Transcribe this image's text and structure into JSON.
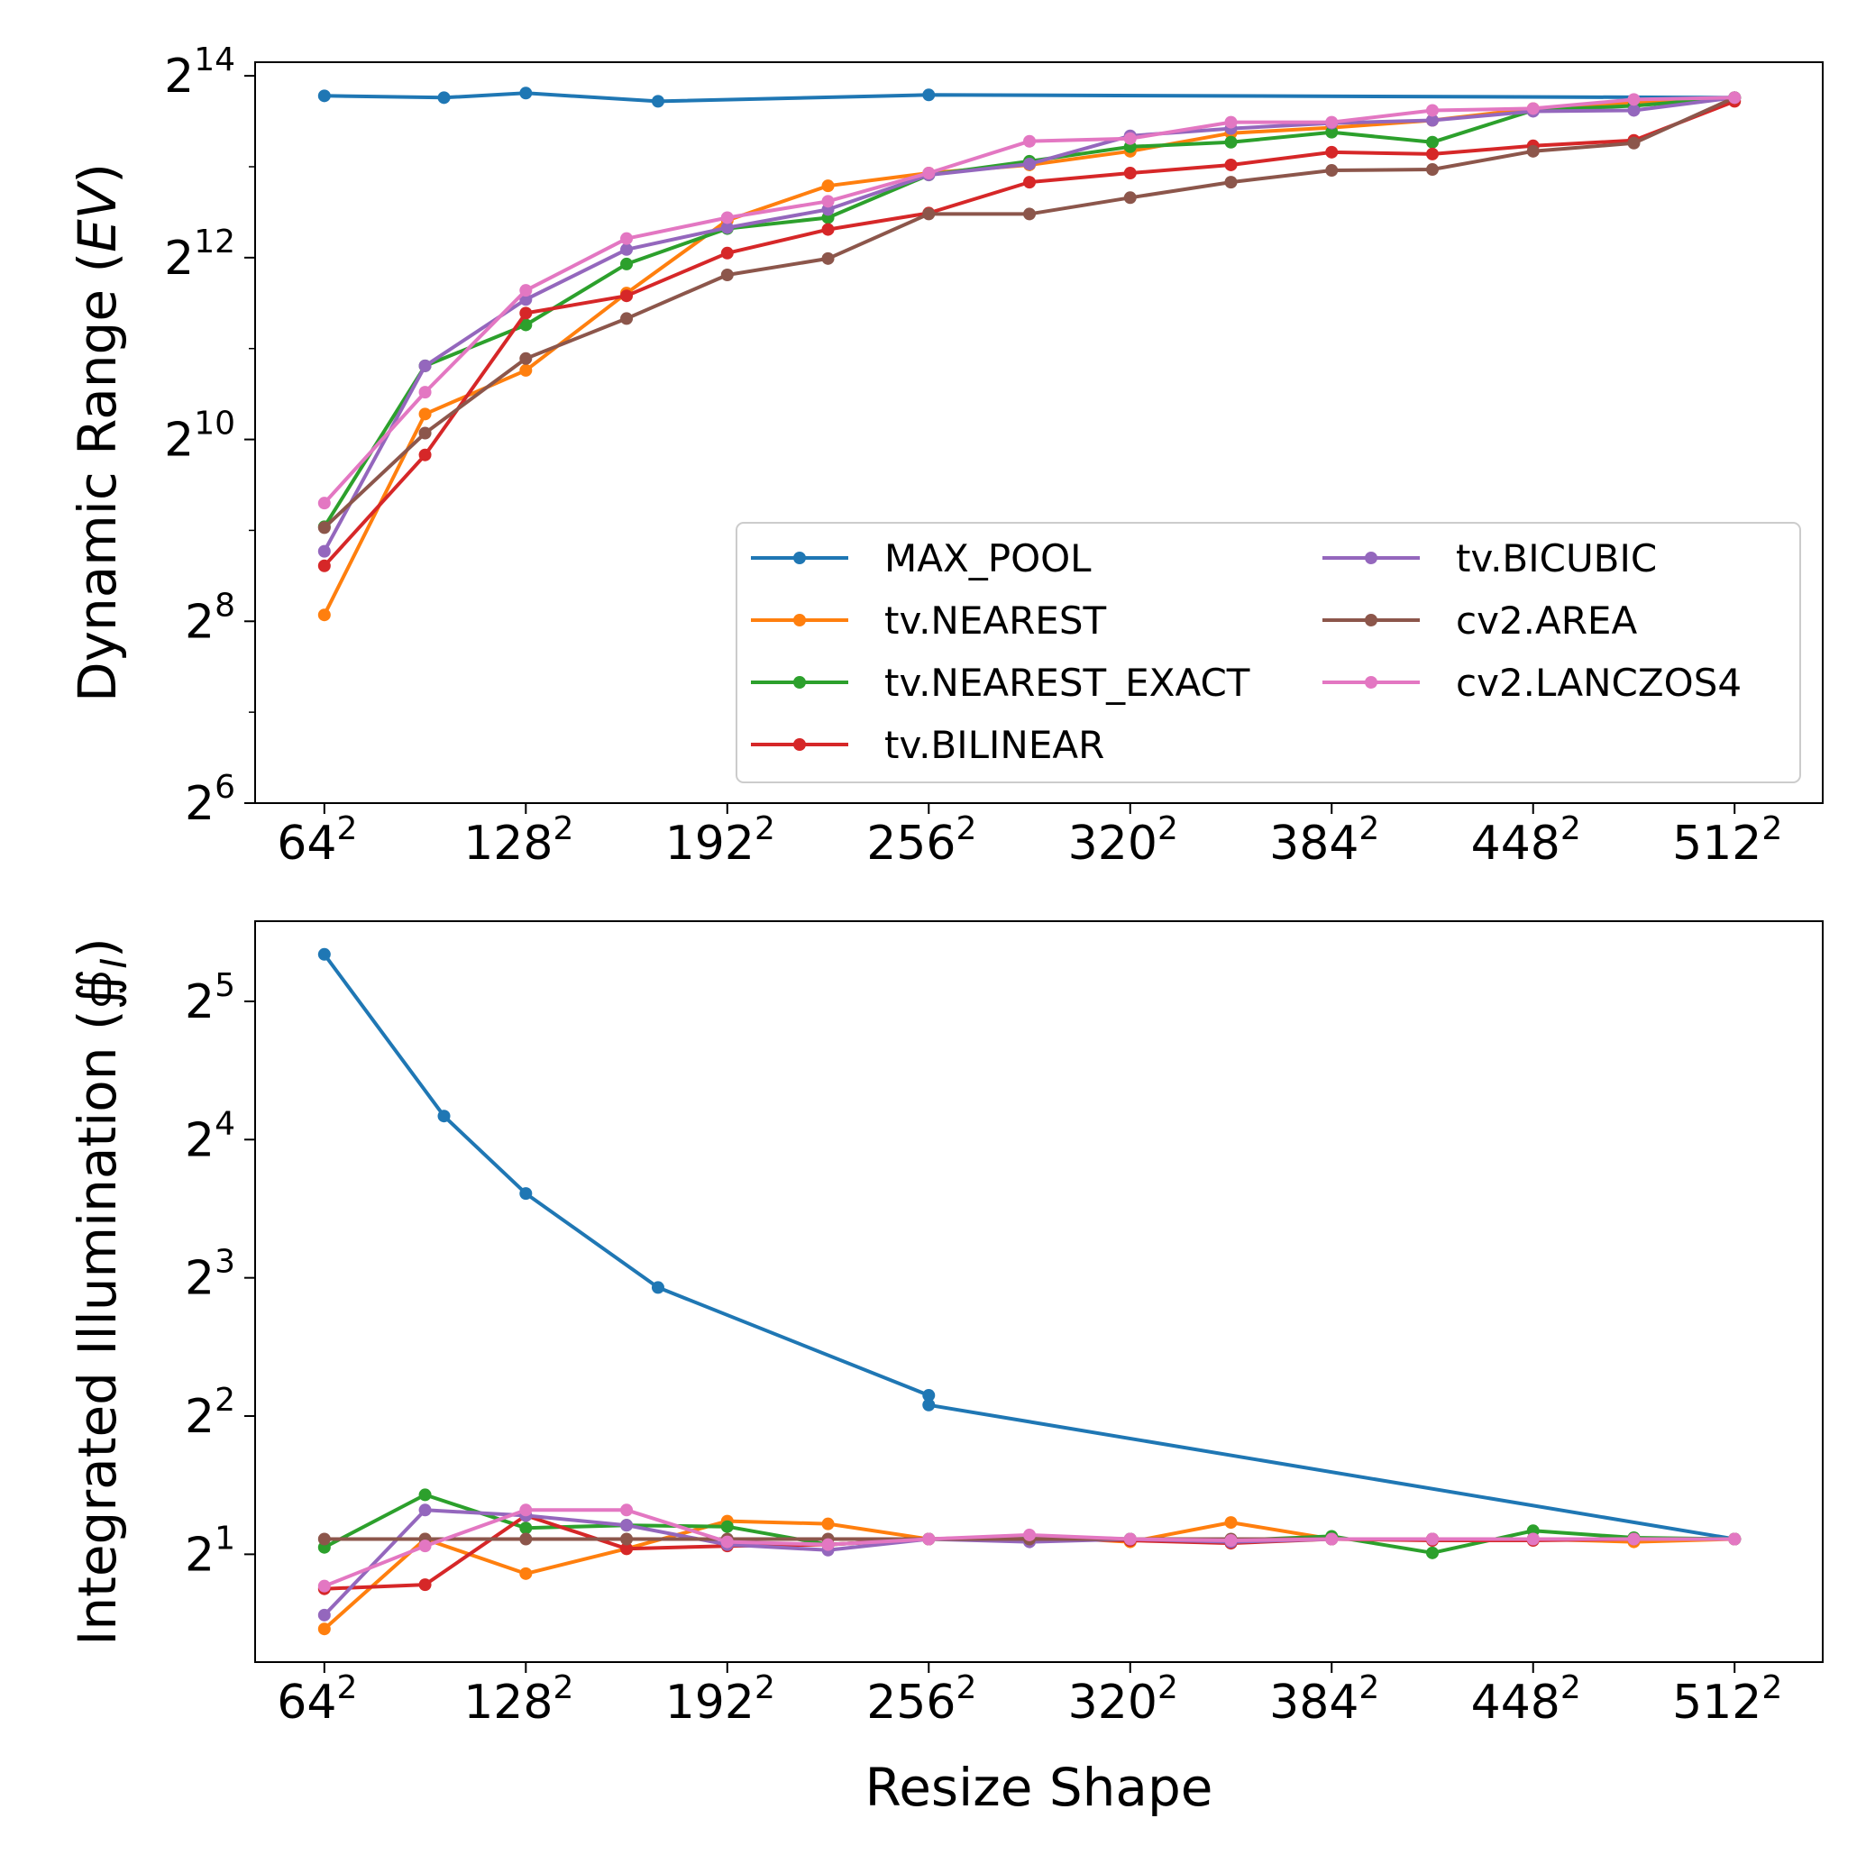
{
  "x_tick_labels": [
    "64",
    "128",
    "192",
    "256",
    "320",
    "384",
    "448",
    "512"
  ],
  "x_tick_exponent": "2",
  "series_colors": [
    "#1f77b4",
    "#ff7f0e",
    "#2ca02c",
    "#d62728",
    "#9467bd",
    "#8c564b",
    "#e377c2"
  ],
  "chart_data": [
    {
      "type": "line",
      "ylabel": "Dynamic Range",
      "ylabel_unit": "EV",
      "yscale": "log2",
      "ylim_exponent": [
        6,
        14.15
      ],
      "ytick_base": "2",
      "ytick_exponents": [
        "6",
        "8",
        "10",
        "12",
        "14"
      ],
      "xlim": [
        42,
        540
      ],
      "xtick_values": [
        64,
        128,
        192,
        256,
        320,
        384,
        448,
        512
      ],
      "legend_placement": "lower-right",
      "legend_columns": 2,
      "series": [
        {
          "name": "MAX_POOL",
          "color": "#1f77b4",
          "x": [
            64,
            102,
            128,
            170,
            256,
            512
          ],
          "y": [
            13.78,
            13.76,
            13.81,
            13.72,
            13.79,
            13.76
          ]
        },
        {
          "name": "tv.NEAREST",
          "color": "#ff7f0e",
          "x": [
            64,
            96,
            128,
            160,
            192,
            224,
            256,
            288,
            320,
            352,
            384,
            416,
            448,
            480,
            512
          ],
          "y": [
            8.07,
            10.28,
            10.76,
            11.61,
            12.41,
            12.79,
            12.93,
            13.02,
            13.17,
            13.37,
            13.43,
            13.51,
            13.64,
            13.71,
            13.76
          ]
        },
        {
          "name": "tv.NEAREST_EXACT",
          "color": "#2ca02c",
          "x": [
            64,
            96,
            128,
            160,
            192,
            224,
            256,
            288,
            320,
            352,
            384,
            416,
            448,
            480,
            512
          ],
          "y": [
            9.04,
            10.81,
            11.26,
            11.93,
            12.32,
            12.44,
            12.91,
            13.06,
            13.22,
            13.27,
            13.38,
            13.27,
            13.62,
            13.67,
            13.76
          ]
        },
        {
          "name": "tv.BILINEAR",
          "color": "#d62728",
          "x": [
            64,
            96,
            128,
            160,
            192,
            224,
            256,
            288,
            320,
            352,
            384,
            416,
            448,
            480,
            512
          ],
          "y": [
            8.61,
            9.83,
            11.39,
            11.58,
            12.05,
            12.31,
            12.49,
            12.83,
            12.93,
            13.02,
            13.16,
            13.14,
            13.23,
            13.29,
            13.72
          ]
        },
        {
          "name": "tv.BICUBIC",
          "color": "#9467bd",
          "x": [
            64,
            96,
            128,
            160,
            192,
            224,
            256,
            288,
            320,
            352,
            384,
            416,
            448,
            480,
            512
          ],
          "y": [
            8.77,
            10.81,
            11.54,
            12.09,
            12.33,
            12.53,
            12.91,
            13.03,
            13.34,
            13.42,
            13.48,
            13.51,
            13.61,
            13.62,
            13.76
          ]
        },
        {
          "name": "cv2.AREA",
          "color": "#8c564b",
          "x": [
            64,
            96,
            128,
            160,
            192,
            224,
            256,
            288,
            320,
            352,
            384,
            416,
            448,
            480,
            512
          ],
          "y": [
            9.03,
            10.07,
            10.89,
            11.33,
            11.81,
            11.99,
            12.48,
            12.48,
            12.66,
            12.83,
            12.96,
            12.97,
            13.17,
            13.26,
            13.76
          ]
        },
        {
          "name": "cv2.LANCZOS4",
          "color": "#e377c2",
          "x": [
            64,
            96,
            128,
            160,
            192,
            224,
            256,
            288,
            320,
            352,
            384,
            416,
            448,
            480,
            512
          ],
          "y": [
            9.3,
            10.52,
            11.64,
            12.21,
            12.44,
            12.62,
            12.93,
            13.28,
            13.31,
            13.49,
            13.49,
            13.62,
            13.64,
            13.74,
            13.76
          ]
        }
      ]
    },
    {
      "type": "line",
      "ylabel": "Integrated Illumination",
      "ylabel_symbol": "∯",
      "ylabel_subscript": "I",
      "xlabel": "Resize Shape",
      "yscale": "log2",
      "ylim_exponent": [
        0.22,
        5.58
      ],
      "ytick_base": "2",
      "ytick_exponents": [
        "1",
        "2",
        "3",
        "4",
        "5"
      ],
      "xlim": [
        42,
        540
      ],
      "xtick_values": [
        64,
        128,
        192,
        256,
        320,
        384,
        448,
        512
      ],
      "series": [
        {
          "name": "MAX_POOL",
          "color": "#1f77b4",
          "x": [
            64,
            102,
            128,
            170,
            256,
            256,
            512
          ],
          "y": [
            5.34,
            4.17,
            3.61,
            2.93,
            2.15,
            2.08,
            1.11
          ]
        },
        {
          "name": "tv.NEAREST",
          "color": "#ff7f0e",
          "x": [
            64,
            96,
            128,
            160,
            192,
            224,
            256,
            288,
            320,
            352,
            384,
            416,
            448,
            480,
            512
          ],
          "y": [
            0.46,
            1.11,
            0.86,
            1.04,
            1.24,
            1.22,
            1.11,
            1.13,
            1.09,
            1.23,
            1.11,
            1.11,
            1.11,
            1.09,
            1.11
          ]
        },
        {
          "name": "tv.NEAREST_EXACT",
          "color": "#2ca02c",
          "x": [
            64,
            96,
            128,
            160,
            192,
            224,
            256,
            288,
            320,
            352,
            384,
            416,
            448,
            480,
            512
          ],
          "y": [
            1.05,
            1.43,
            1.19,
            1.21,
            1.2,
            1.07,
            1.11,
            1.13,
            1.11,
            1.1,
            1.13,
            1.01,
            1.17,
            1.12,
            1.11
          ]
        },
        {
          "name": "tv.BILINEAR",
          "color": "#d62728",
          "x": [
            64,
            96,
            128,
            160,
            192,
            224,
            256,
            288,
            320,
            352,
            384,
            416,
            448,
            480,
            512
          ],
          "y": [
            0.75,
            0.78,
            1.28,
            1.04,
            1.06,
            1.07,
            1.11,
            1.11,
            1.1,
            1.08,
            1.11,
            1.1,
            1.1,
            1.11,
            1.11
          ]
        },
        {
          "name": "tv.BICUBIC",
          "color": "#9467bd",
          "x": [
            64,
            96,
            128,
            160,
            192,
            224,
            256,
            288,
            320,
            352,
            384,
            416,
            448,
            480,
            512
          ],
          "y": [
            0.56,
            1.32,
            1.28,
            1.21,
            1.07,
            1.03,
            1.11,
            1.09,
            1.11,
            1.09,
            1.11,
            1.11,
            1.11,
            1.11,
            1.11
          ]
        },
        {
          "name": "cv2.AREA",
          "color": "#8c564b",
          "x": [
            64,
            96,
            128,
            160,
            192,
            224,
            256,
            288,
            320,
            352,
            384,
            416,
            448,
            480,
            512
          ],
          "y": [
            1.11,
            1.11,
            1.11,
            1.11,
            1.11,
            1.11,
            1.11,
            1.11,
            1.11,
            1.11,
            1.11,
            1.11,
            1.11,
            1.11,
            1.11
          ]
        },
        {
          "name": "cv2.LANCZOS4",
          "color": "#e377c2",
          "x": [
            64,
            96,
            128,
            160,
            192,
            224,
            256,
            288,
            320,
            352,
            384,
            416,
            448,
            480,
            512
          ],
          "y": [
            0.77,
            1.06,
            1.32,
            1.32,
            1.09,
            1.07,
            1.11,
            1.14,
            1.11,
            1.1,
            1.11,
            1.11,
            1.11,
            1.11,
            1.11
          ]
        }
      ]
    }
  ]
}
